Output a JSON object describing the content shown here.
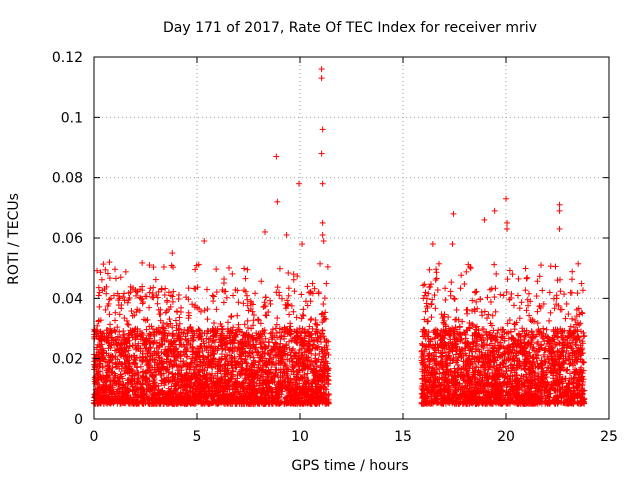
{
  "chart_data": {
    "type": "scatter",
    "title": "Day 171 of 2017, Rate Of TEC Index for receiver mriv",
    "xlabel": "GPS time / hours",
    "ylabel": "ROTI / TECUs",
    "xlim": [
      0,
      25
    ],
    "ylim": [
      0,
      0.12
    ],
    "xticks": [
      0,
      5,
      10,
      15,
      20,
      25
    ],
    "xtick_labels": [
      "0",
      "5",
      "10",
      "15",
      "20",
      "25"
    ],
    "yticks": [
      0,
      0.02,
      0.04,
      0.06,
      0.08,
      0.1,
      0.12
    ],
    "ytick_labels": [
      "0",
      "0.02",
      "0.04",
      "0.06",
      "0.08",
      "0.1",
      "0.12"
    ],
    "grid": true,
    "marker": "+",
    "color": "#ff0000",
    "series": [
      {
        "name": "ROTI",
        "segments": [
          [
            0,
            11.4
          ],
          [
            15.9,
            23.8
          ]
        ],
        "typical_range": [
          0.005,
          0.03
        ],
        "notable_points": [
          {
            "x": 11.05,
            "y": 0.116
          },
          {
            "x": 11.05,
            "y": 0.113
          },
          {
            "x": 11.1,
            "y": 0.096
          },
          {
            "x": 11.05,
            "y": 0.088
          },
          {
            "x": 8.85,
            "y": 0.087
          },
          {
            "x": 11.1,
            "y": 0.078
          },
          {
            "x": 9.95,
            "y": 0.078
          },
          {
            "x": 8.9,
            "y": 0.072
          },
          {
            "x": 20.0,
            "y": 0.073
          },
          {
            "x": 22.6,
            "y": 0.071
          },
          {
            "x": 22.6,
            "y": 0.069
          },
          {
            "x": 19.45,
            "y": 0.069
          },
          {
            "x": 17.45,
            "y": 0.068
          },
          {
            "x": 20.05,
            "y": 0.065
          },
          {
            "x": 11.1,
            "y": 0.065
          },
          {
            "x": 22.6,
            "y": 0.063
          },
          {
            "x": 18.95,
            "y": 0.066
          },
          {
            "x": 20.05,
            "y": 0.063
          },
          {
            "x": 11.15,
            "y": 0.059
          },
          {
            "x": 11.1,
            "y": 0.061
          },
          {
            "x": 9.35,
            "y": 0.061
          },
          {
            "x": 8.3,
            "y": 0.062
          },
          {
            "x": 10.1,
            "y": 0.058
          },
          {
            "x": 5.35,
            "y": 0.059
          },
          {
            "x": 3.8,
            "y": 0.055
          },
          {
            "x": 16.45,
            "y": 0.058
          },
          {
            "x": 17.4,
            "y": 0.058
          },
          {
            "x": 21.7,
            "y": 0.051
          },
          {
            "x": 0.75,
            "y": 0.052
          },
          {
            "x": 1.3,
            "y": 0.047
          }
        ]
      }
    ]
  }
}
